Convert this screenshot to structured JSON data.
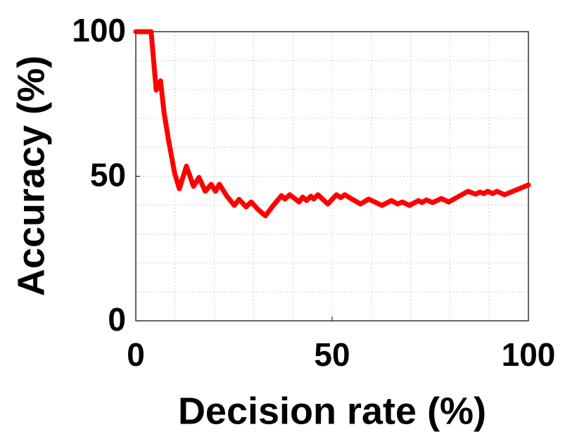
{
  "chart_data": {
    "type": "line",
    "x_label": "Decision rate (%)",
    "y_label": "Accuracy (%)",
    "x": [
      0,
      3.9,
      5.2,
      6.3,
      7.2,
      8.4,
      9.9,
      11.1,
      12.9,
      14.7,
      16.1,
      17.7,
      19.2,
      20.3,
      21.3,
      23.1,
      25.1,
      26.3,
      28.1,
      29.4,
      31,
      33,
      34.9,
      37.1,
      38,
      39.2,
      41.6,
      42.5,
      43.5,
      44.6,
      45.3,
      46.4,
      48.9,
      51.1,
      52.2,
      53.2,
      57.2,
      59.3,
      62.7,
      65.1,
      66.7,
      67.9,
      69.7,
      72,
      72.9,
      74,
      75.6,
      77.8,
      79.7,
      84.6,
      86.6,
      87.6,
      88.7,
      89.6,
      90.9,
      92,
      93.9,
      100
    ],
    "series": [
      {
        "color": "#ff0000",
        "values": [
          100,
          100,
          79.8,
          83,
          72,
          62,
          51,
          45.7,
          53.5,
          46.5,
          49.6,
          44.8,
          47.2,
          44.8,
          47.2,
          43.3,
          39.9,
          42,
          39.4,
          41.1,
          38.7,
          36.3,
          39.7,
          43.3,
          42.1,
          43.6,
          41.1,
          42.8,
          41.6,
          43.1,
          42.1,
          43.6,
          40.4,
          43.6,
          42.6,
          43.6,
          40.4,
          42.1,
          39.9,
          41.6,
          40.4,
          41.1,
          39.9,
          41.6,
          40.9,
          41.8,
          40.9,
          42.3,
          41.1,
          44.8,
          43.8,
          44.5,
          44,
          44.8,
          44,
          44.8,
          43.6,
          47
        ]
      }
    ],
    "xlim": [
      0,
      100
    ],
    "ylim": [
      0,
      100
    ],
    "xticks": [
      0,
      50,
      100
    ],
    "yticks": [
      0,
      50,
      100
    ],
    "minor_xticks": [
      10,
      20,
      30,
      40,
      60,
      70,
      80,
      90
    ],
    "minor_yticks": [
      10,
      20,
      30,
      40,
      60,
      70,
      80,
      90
    ],
    "grid": true
  }
}
